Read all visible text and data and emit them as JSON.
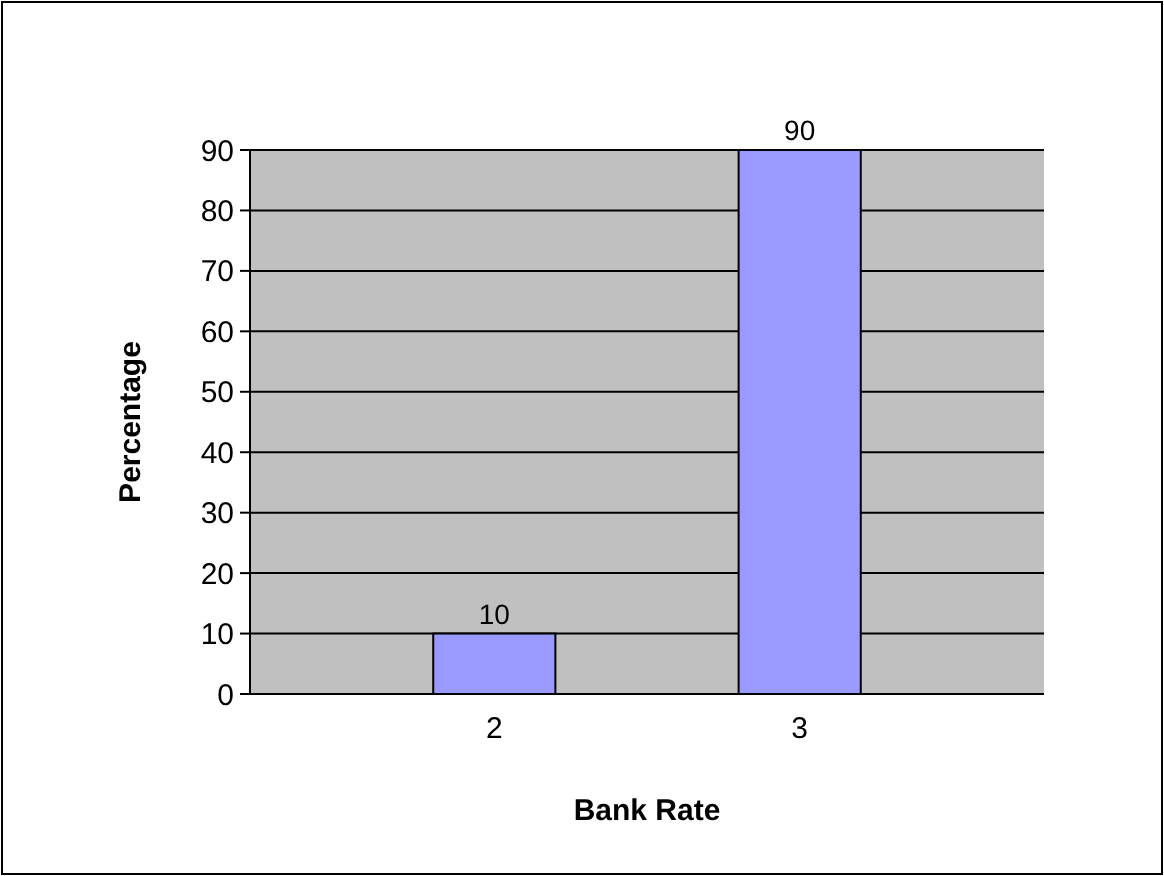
{
  "chart_data": {
    "type": "bar",
    "categories": [
      "2",
      "3"
    ],
    "values": [
      10,
      90
    ],
    "color": "#9999ff",
    "ylim": [
      0,
      90
    ],
    "yticks": [
      0,
      10,
      20,
      30,
      40,
      50,
      60,
      70,
      80,
      90
    ],
    "grid": "y",
    "data_labels": true,
    "xlabel": "Bank Rate",
    "ylabel": "Percentage"
  }
}
